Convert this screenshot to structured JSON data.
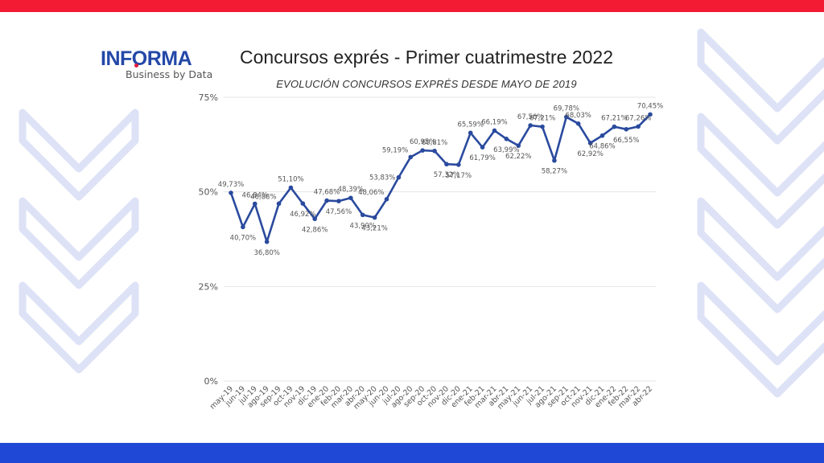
{
  "colors": {
    "top_bar": "#f31b34",
    "bottom_bar": "#1f48d6",
    "line": "#2a4a9e",
    "grid": "#e4e4e4",
    "deco": "#dde2f6",
    "logo_blue": "#2348a8",
    "logo_red": "#e11d3a"
  },
  "logo": {
    "text_pre": "INF",
    "text_o": "O",
    "text_post": "RMA",
    "tagline": "Business by Data"
  },
  "header": {
    "title": "Concursos exprés - Primer cuatrimestre 2022",
    "subtitle": "EVOLUCIÓN CONCURSOS EXPRÉS DESDE MAYO DE 2019"
  },
  "chart_data": {
    "type": "line",
    "title": "Concursos exprés - Primer cuatrimestre 2022",
    "subtitle": "EVOLUCIÓN CONCURSOS EXPRÉS DESDE MAYO DE 2019",
    "xlabel": "",
    "ylabel": "",
    "ylim": [
      0,
      75
    ],
    "yticks": [
      "0%",
      "25%",
      "50%",
      "75%"
    ],
    "grid": true,
    "legend": null,
    "categories": [
      "may-19",
      "jun-19",
      "jul-19",
      "ago-19",
      "sep-19",
      "oct-19",
      "nov-19",
      "dic-19",
      "ene-20",
      "feb-20",
      "mar-20",
      "abr-20",
      "may-20",
      "jun-20",
      "jul-20",
      "ago-20",
      "sep-20",
      "oct-20",
      "nov-20",
      "dic-20",
      "ene-21",
      "feb-21",
      "mar-21",
      "abr-21",
      "may-21",
      "jun-21",
      "jul-21",
      "ago-21",
      "sep-21",
      "oct-21",
      "nov-21",
      "dic-21",
      "ene-22",
      "feb-22",
      "mar-22",
      "abr-22"
    ],
    "values": [
      49.73,
      40.7,
      46.84,
      36.8,
      46.88,
      51.1,
      46.92,
      42.86,
      47.68,
      47.56,
      48.39,
      43.9,
      43.21,
      48.06,
      53.83,
      59.19,
      60.95,
      60.81,
      57.32,
      57.17,
      65.59,
      61.79,
      66.19,
      63.99,
      62.22,
      67.56,
      67.21,
      58.27,
      69.78,
      68.03,
      62.92,
      64.86,
      67.21,
      66.55,
      67.26,
      70.45
    ],
    "labels": [
      "49,73%",
      "40,70%",
      "46,84%",
      "36,80%",
      "46,88%",
      "51,10%",
      "46,92%",
      "42,86%",
      "47,68%",
      "47,56%",
      "48,39%",
      "43,90%",
      "43,21%",
      "48,06%",
      "53,83%",
      "59,19%",
      "60,95%",
      "60,81%",
      "57,32%",
      "57,17%",
      "65,59%",
      "61,79%",
      "66,19%",
      "63,99%",
      "62,22%",
      "67,56%",
      "67,21%",
      "58,27%",
      "69,78%",
      "68,03%",
      "62,92%",
      "64,86%",
      "67,21%",
      "66,55%",
      "67,26%",
      "70,45%"
    ],
    "label_pos": [
      "a",
      "b",
      "a",
      "b",
      "al",
      "a",
      "b",
      "b",
      "a",
      "b",
      "a",
      "b",
      "b",
      "al",
      "l",
      "al",
      "a",
      "a",
      "b",
      "b",
      "a",
      "b",
      "a",
      "b",
      "b",
      "a",
      "a",
      "b",
      "a",
      "a",
      "b",
      "b",
      "a",
      "b",
      "a",
      "a"
    ]
  }
}
